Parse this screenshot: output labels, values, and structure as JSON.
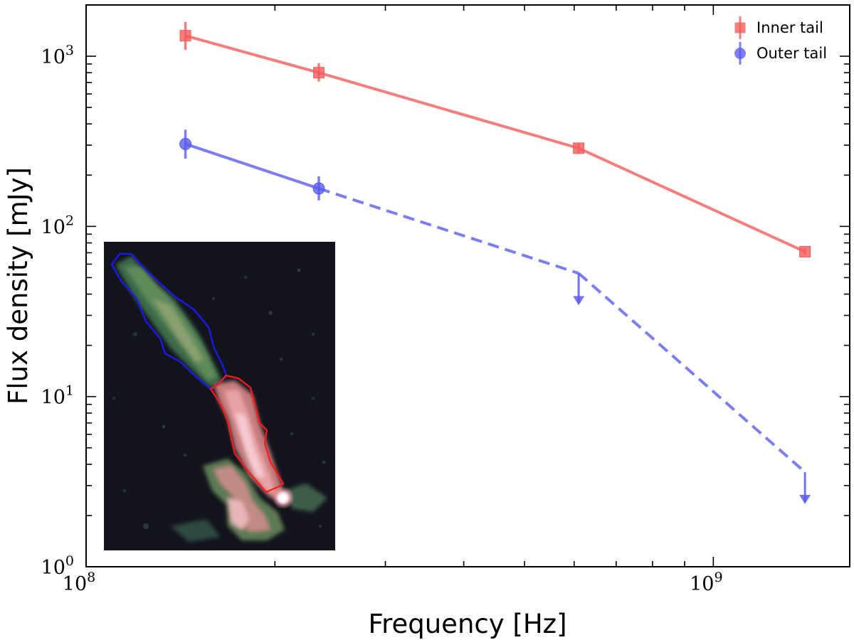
{
  "chart_data": {
    "type": "line",
    "xscale": "log",
    "yscale": "log",
    "xlabel": "Frequency [Hz]",
    "ylabel": "Flux density [mJy]",
    "xlim": [
      100000000.0,
      1650000000.0
    ],
    "ylim": [
      1.0,
      2000
    ],
    "x_major_ticks": [
      {
        "value": 100000000.0,
        "base": "10",
        "exp": "8"
      },
      {
        "value": 1000000000.0,
        "base": "10",
        "exp": "9"
      }
    ],
    "y_major_ticks": [
      {
        "value": 1,
        "base": "10",
        "exp": "0"
      },
      {
        "value": 10,
        "base": "10",
        "exp": "1"
      },
      {
        "value": 100,
        "base": "10",
        "exp": "2"
      },
      {
        "value": 1000,
        "base": "10",
        "exp": "3"
      }
    ],
    "legend_position": "top-right",
    "series": [
      {
        "name": "Inner tail",
        "color": "#f25c5c",
        "marker": "square",
        "points": [
          {
            "x": 144000000.0,
            "y": 1320,
            "err_lo": 230,
            "err_hi": 270,
            "upper_limit": false
          },
          {
            "x": 235000000.0,
            "y": 800,
            "err_lo": 90,
            "err_hi": 110,
            "upper_limit": false
          },
          {
            "x": 610000000.0,
            "y": 288,
            "err_lo": 20,
            "err_hi": 22,
            "upper_limit": false
          },
          {
            "x": 1400000000.0,
            "y": 71,
            "err_lo": 3,
            "err_hi": 3,
            "upper_limit": false
          }
        ]
      },
      {
        "name": "Outer tail",
        "color": "#5b5bf0",
        "marker": "circle",
        "points": [
          {
            "x": 144000000.0,
            "y": 305,
            "err_lo": 55,
            "err_hi": 65,
            "upper_limit": false
          },
          {
            "x": 235000000.0,
            "y": 167,
            "err_lo": 25,
            "err_hi": 30,
            "upper_limit": false
          },
          {
            "x": 610000000.0,
            "y": 53,
            "upper_limit": true
          },
          {
            "x": 1400000000.0,
            "y": 3.6,
            "upper_limit": true
          }
        ]
      }
    ],
    "inset": {
      "description": "radio image of tailed source with outer (blue) and inner (red) tail regions",
      "outer_region_color": "#1a1aff",
      "inner_region_color": "#ff1a1a"
    }
  }
}
